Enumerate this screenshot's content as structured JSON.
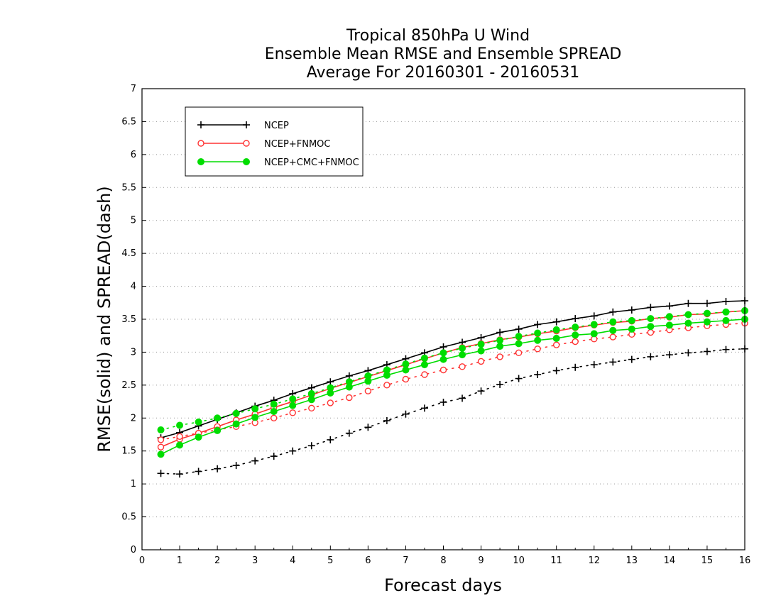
{
  "chart_data": {
    "type": "line",
    "title_lines": [
      "Tropical 850hPa U Wind",
      "Ensemble Mean RMSE and Ensemble SPREAD",
      "Average For 20160301 - 20160531"
    ],
    "xlabel": "Forecast days",
    "ylabel": "RMSE(solid) and SPREAD(dash)",
    "xlim": [
      0,
      16
    ],
    "ylim": [
      0,
      7
    ],
    "x_ticks": [
      "0",
      "1",
      "2",
      "3",
      "4",
      "5",
      "6",
      "7",
      "8",
      "9",
      "10",
      "11",
      "12",
      "13",
      "14",
      "15",
      "16"
    ],
    "y_ticks": [
      "0",
      "0.5",
      "1",
      "1.5",
      "2",
      "2.5",
      "3",
      "3.5",
      "4",
      "4.5",
      "5",
      "5.5",
      "6",
      "6.5",
      "7"
    ],
    "grid": "horizontal dotted",
    "legend_position": "top-left",
    "x": [
      0.5,
      1,
      1.5,
      2,
      2.5,
      3,
      3.5,
      4,
      4.5,
      5,
      5.5,
      6,
      6.5,
      7,
      7.5,
      8,
      8.5,
      9,
      9.5,
      10,
      10.5,
      11,
      11.5,
      12,
      12.5,
      13,
      13.5,
      14,
      14.5,
      15,
      15.5,
      16
    ],
    "series": [
      {
        "name": "NCEP",
        "color": "#000000",
        "marker": "plus",
        "rmse": [
          1.7,
          1.78,
          1.88,
          1.98,
          2.08,
          2.18,
          2.27,
          2.37,
          2.46,
          2.55,
          2.64,
          2.72,
          2.81,
          2.9,
          2.99,
          3.08,
          3.15,
          3.22,
          3.3,
          3.35,
          3.42,
          3.46,
          3.51,
          3.55,
          3.61,
          3.64,
          3.68,
          3.7,
          3.74,
          3.74,
          3.77,
          3.78
        ],
        "spread": [
          1.16,
          1.15,
          1.19,
          1.23,
          1.28,
          1.35,
          1.42,
          1.5,
          1.58,
          1.67,
          1.77,
          1.86,
          1.96,
          2.06,
          2.15,
          2.24,
          2.3,
          2.41,
          2.51,
          2.6,
          2.66,
          2.72,
          2.77,
          2.81,
          2.85,
          2.89,
          2.93,
          2.96,
          2.99,
          3.01,
          3.04,
          3.05
        ]
      },
      {
        "name": "NCEP+FNMOC",
        "color": "#ff3333",
        "marker": "open-circle",
        "rmse": [
          1.56,
          1.68,
          1.77,
          1.87,
          1.97,
          2.06,
          2.16,
          2.25,
          2.35,
          2.45,
          2.54,
          2.63,
          2.72,
          2.81,
          2.9,
          2.99,
          3.07,
          3.13,
          3.19,
          3.23,
          3.28,
          3.32,
          3.37,
          3.41,
          3.45,
          3.47,
          3.51,
          3.53,
          3.57,
          3.58,
          3.61,
          3.63
        ],
        "spread": [
          1.67,
          1.72,
          1.77,
          1.82,
          1.87,
          1.93,
          2.0,
          2.08,
          2.15,
          2.23,
          2.31,
          2.41,
          2.5,
          2.59,
          2.66,
          2.73,
          2.78,
          2.86,
          2.93,
          2.99,
          3.05,
          3.11,
          3.16,
          3.2,
          3.23,
          3.27,
          3.3,
          3.34,
          3.37,
          3.4,
          3.42,
          3.44
        ]
      },
      {
        "name": "NCEP+CMC+FNMOC",
        "color": "#00dd00",
        "marker": "filled-circle",
        "rmse": [
          1.45,
          1.59,
          1.71,
          1.81,
          1.91,
          2.01,
          2.1,
          2.19,
          2.28,
          2.38,
          2.47,
          2.56,
          2.65,
          2.73,
          2.81,
          2.89,
          2.96,
          3.02,
          3.09,
          3.13,
          3.18,
          3.21,
          3.26,
          3.28,
          3.33,
          3.35,
          3.39,
          3.41,
          3.44,
          3.46,
          3.48,
          3.5
        ],
        "spread": [
          1.82,
          1.89,
          1.94,
          2.0,
          2.07,
          2.14,
          2.21,
          2.29,
          2.37,
          2.46,
          2.55,
          2.64,
          2.73,
          2.82,
          2.91,
          2.99,
          3.06,
          3.12,
          3.18,
          3.24,
          3.29,
          3.34,
          3.38,
          3.42,
          3.46,
          3.48,
          3.51,
          3.54,
          3.57,
          3.59,
          3.61,
          3.63
        ]
      }
    ]
  }
}
